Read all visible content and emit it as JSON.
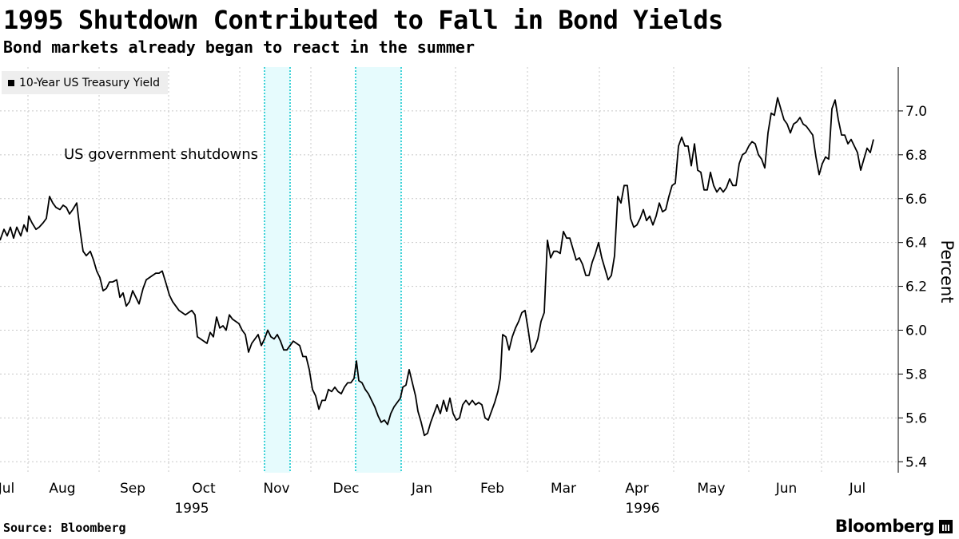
{
  "title": "1995 Shutdown Contributed to Fall in Bond Yields",
  "subtitle": "Bond markets already began to react in the summer",
  "legend": {
    "label": "10-Year US Treasury Yield"
  },
  "annotation": "US government shutdowns",
  "source": "Source: Bloomberg",
  "brand": "Bloomberg",
  "colors": {
    "line": "#000000",
    "shade": "#e6fbfd",
    "shade_edge": "#3fd3d8",
    "annotation": "#3fd3d8",
    "grid": "#c8c8c8"
  },
  "chart_data": {
    "type": "line",
    "title": "1995 Shutdown Contributed to Fall in Bond Yields",
    "subtitle": "Bond markets already began to react in the summer",
    "ylabel": "Percent",
    "ylim": [
      5.35,
      7.2
    ],
    "yticks": [
      "5.4",
      "5.6",
      "5.8",
      "6.0",
      "6.2",
      "6.4",
      "6.6",
      "6.8",
      "7.0"
    ],
    "xlim": [
      0,
      1098
    ],
    "months": [
      {
        "label": "Jul",
        "pos": -10
      },
      {
        "label": "Aug",
        "pos": 78
      },
      {
        "label": "Sep",
        "pos": 166
      },
      {
        "label": "Oct",
        "pos": 255
      },
      {
        "label": "Nov",
        "pos": 346
      },
      {
        "label": "Dec",
        "pos": 433
      },
      {
        "label": "Jan",
        "pos": 528
      },
      {
        "label": "Feb",
        "pos": 616
      },
      {
        "label": "Mar",
        "pos": 705
      },
      {
        "label": "Apr",
        "pos": 797
      },
      {
        "label": "May",
        "pos": 890
      },
      {
        "label": "Jun",
        "pos": 984
      },
      {
        "label": "Jul",
        "pos": 1073
      }
    ],
    "year_labels": [
      {
        "label": "1995",
        "pos": 240
      },
      {
        "label": "1996",
        "pos": 804
      }
    ],
    "gridlines_x": [
      35,
      124,
      211,
      300,
      389,
      478,
      570,
      660,
      750,
      843,
      937,
      1028
    ],
    "shutdowns": [
      [
        331,
        363
      ],
      [
        445,
        502
      ]
    ],
    "series": [
      {
        "name": "10-Year US Treasury Yield",
        "points": [
          [
            0,
            6.41
          ],
          [
            5,
            6.46
          ],
          [
            9,
            6.43
          ],
          [
            13,
            6.47
          ],
          [
            17,
            6.42
          ],
          [
            21,
            6.47
          ],
          [
            26,
            6.43
          ],
          [
            30,
            6.48
          ],
          [
            34,
            6.45
          ],
          [
            36,
            6.52
          ],
          [
            40,
            6.49
          ],
          [
            45,
            6.46
          ],
          [
            49,
            6.47
          ],
          [
            54,
            6.49
          ],
          [
            58,
            6.51
          ],
          [
            62,
            6.61
          ],
          [
            66,
            6.58
          ],
          [
            70,
            6.56
          ],
          [
            75,
            6.55
          ],
          [
            79,
            6.57
          ],
          [
            83,
            6.56
          ],
          [
            87,
            6.53
          ],
          [
            91,
            6.55
          ],
          [
            96,
            6.58
          ],
          [
            100,
            6.46
          ],
          [
            104,
            6.36
          ],
          [
            108,
            6.34
          ],
          [
            113,
            6.36
          ],
          [
            117,
            6.32
          ],
          [
            121,
            6.27
          ],
          [
            125,
            6.24
          ],
          [
            129,
            6.18
          ],
          [
            133,
            6.19
          ],
          [
            137,
            6.22
          ],
          [
            141,
            6.22
          ],
          [
            146,
            6.23
          ],
          [
            150,
            6.15
          ],
          [
            154,
            6.17
          ],
          [
            158,
            6.11
          ],
          [
            162,
            6.13
          ],
          [
            166,
            6.18
          ],
          [
            170,
            6.15
          ],
          [
            174,
            6.12
          ],
          [
            179,
            6.19
          ],
          [
            183,
            6.23
          ],
          [
            187,
            6.24
          ],
          [
            191,
            6.25
          ],
          [
            195,
            6.26
          ],
          [
            199,
            6.26
          ],
          [
            203,
            6.27
          ],
          [
            208,
            6.21
          ],
          [
            212,
            6.16
          ],
          [
            216,
            6.13
          ],
          [
            220,
            6.11
          ],
          [
            224,
            6.09
          ],
          [
            228,
            6.08
          ],
          [
            232,
            6.07
          ],
          [
            236,
            6.08
          ],
          [
            240,
            6.09
          ],
          [
            244,
            6.07
          ],
          [
            247,
            5.97
          ],
          [
            251,
            5.96
          ],
          [
            255,
            5.95
          ],
          [
            259,
            5.94
          ],
          [
            263,
            5.99
          ],
          [
            267,
            5.97
          ],
          [
            271,
            6.06
          ],
          [
            275,
            6.01
          ],
          [
            279,
            6.02
          ],
          [
            283,
            6.0
          ],
          [
            287,
            6.07
          ],
          [
            291,
            6.05
          ],
          [
            295,
            6.04
          ],
          [
            299,
            6.03
          ],
          [
            303,
            6.0
          ],
          [
            307,
            5.98
          ],
          [
            311,
            5.9
          ],
          [
            315,
            5.94
          ],
          [
            319,
            5.96
          ],
          [
            323,
            5.98
          ],
          [
            327,
            5.93
          ],
          [
            331,
            5.96
          ],
          [
            335,
            6.0
          ],
          [
            339,
            5.97
          ],
          [
            343,
            5.96
          ],
          [
            347,
            5.98
          ],
          [
            351,
            5.95
          ],
          [
            355,
            5.91
          ],
          [
            359,
            5.91
          ],
          [
            363,
            5.93
          ],
          [
            367,
            5.95
          ],
          [
            371,
            5.94
          ],
          [
            375,
            5.93
          ],
          [
            379,
            5.88
          ],
          [
            383,
            5.88
          ],
          [
            387,
            5.82
          ],
          [
            391,
            5.73
          ],
          [
            395,
            5.7
          ],
          [
            399,
            5.64
          ],
          [
            403,
            5.68
          ],
          [
            407,
            5.68
          ],
          [
            411,
            5.73
          ],
          [
            415,
            5.72
          ],
          [
            419,
            5.74
          ],
          [
            423,
            5.72
          ],
          [
            427,
            5.71
          ],
          [
            431,
            5.74
          ],
          [
            435,
            5.76
          ],
          [
            439,
            5.76
          ],
          [
            443,
            5.78
          ],
          [
            446,
            5.86
          ],
          [
            449,
            5.77
          ],
          [
            453,
            5.76
          ],
          [
            457,
            5.73
          ],
          [
            461,
            5.71
          ],
          [
            465,
            5.68
          ],
          [
            469,
            5.65
          ],
          [
            473,
            5.61
          ],
          [
            477,
            5.58
          ],
          [
            481,
            5.59
          ],
          [
            485,
            5.57
          ],
          [
            489,
            5.62
          ],
          [
            493,
            5.65
          ],
          [
            497,
            5.67
          ],
          [
            501,
            5.69
          ],
          [
            504,
            5.74
          ],
          [
            508,
            5.75
          ],
          [
            512,
            5.82
          ],
          [
            516,
            5.76
          ],
          [
            520,
            5.7
          ],
          [
            523,
            5.63
          ],
          [
            527,
            5.58
          ],
          [
            531,
            5.52
          ],
          [
            535,
            5.53
          ],
          [
            539,
            5.58
          ],
          [
            543,
            5.62
          ],
          [
            547,
            5.66
          ],
          [
            551,
            5.62
          ],
          [
            555,
            5.68
          ],
          [
            559,
            5.63
          ],
          [
            563,
            5.69
          ],
          [
            567,
            5.62
          ],
          [
            571,
            5.59
          ],
          [
            575,
            5.6
          ],
          [
            579,
            5.66
          ],
          [
            583,
            5.68
          ],
          [
            587,
            5.66
          ],
          [
            591,
            5.68
          ],
          [
            595,
            5.66
          ],
          [
            599,
            5.67
          ],
          [
            603,
            5.66
          ],
          [
            607,
            5.6
          ],
          [
            611,
            5.59
          ],
          [
            615,
            5.63
          ],
          [
            619,
            5.67
          ],
          [
            623,
            5.72
          ],
          [
            626,
            5.78
          ],
          [
            629,
            5.98
          ],
          [
            633,
            5.97
          ],
          [
            637,
            5.91
          ],
          [
            641,
            5.97
          ],
          [
            645,
            6.01
          ],
          [
            649,
            6.04
          ],
          [
            653,
            6.08
          ],
          [
            657,
            6.09
          ],
          [
            661,
            6.0
          ],
          [
            665,
            5.9
          ],
          [
            669,
            5.92
          ],
          [
            673,
            5.96
          ],
          [
            677,
            6.04
          ],
          [
            681,
            6.08
          ],
          [
            685,
            6.41
          ],
          [
            689,
            6.33
          ],
          [
            693,
            6.36
          ],
          [
            697,
            6.36
          ],
          [
            701,
            6.35
          ],
          [
            705,
            6.45
          ],
          [
            709,
            6.42
          ],
          [
            713,
            6.42
          ],
          [
            717,
            6.37
          ],
          [
            721,
            6.32
          ],
          [
            725,
            6.33
          ],
          [
            729,
            6.3
          ],
          [
            733,
            6.25
          ],
          [
            737,
            6.25
          ],
          [
            741,
            6.31
          ],
          [
            745,
            6.35
          ],
          [
            749,
            6.4
          ],
          [
            753,
            6.33
          ],
          [
            757,
            6.28
          ],
          [
            761,
            6.23
          ],
          [
            765,
            6.25
          ],
          [
            769,
            6.34
          ],
          [
            773,
            6.61
          ],
          [
            777,
            6.58
          ],
          [
            781,
            6.66
          ],
          [
            785,
            6.66
          ],
          [
            789,
            6.51
          ],
          [
            793,
            6.47
          ],
          [
            797,
            6.48
          ],
          [
            801,
            6.51
          ],
          [
            805,
            6.55
          ],
          [
            809,
            6.5
          ],
          [
            813,
            6.52
          ],
          [
            817,
            6.48
          ],
          [
            821,
            6.52
          ],
          [
            825,
            6.58
          ],
          [
            829,
            6.54
          ],
          [
            833,
            6.55
          ],
          [
            837,
            6.61
          ],
          [
            841,
            6.66
          ],
          [
            845,
            6.67
          ],
          [
            849,
            6.84
          ],
          [
            853,
            6.88
          ],
          [
            857,
            6.84
          ],
          [
            861,
            6.84
          ],
          [
            865,
            6.75
          ],
          [
            869,
            6.85
          ],
          [
            873,
            6.73
          ],
          [
            877,
            6.72
          ],
          [
            881,
            6.64
          ],
          [
            885,
            6.64
          ],
          [
            889,
            6.72
          ],
          [
            893,
            6.66
          ],
          [
            897,
            6.63
          ],
          [
            901,
            6.65
          ],
          [
            905,
            6.63
          ],
          [
            909,
            6.65
          ],
          [
            913,
            6.69
          ],
          [
            917,
            6.66
          ],
          [
            921,
            6.66
          ],
          [
            925,
            6.76
          ],
          [
            929,
            6.8
          ],
          [
            933,
            6.81
          ],
          [
            937,
            6.84
          ],
          [
            941,
            6.86
          ],
          [
            945,
            6.85
          ],
          [
            949,
            6.8
          ],
          [
            953,
            6.78
          ],
          [
            957,
            6.74
          ],
          [
            961,
            6.9
          ],
          [
            965,
            6.99
          ],
          [
            969,
            6.98
          ],
          [
            973,
            7.06
          ],
          [
            977,
            7.01
          ],
          [
            981,
            6.96
          ],
          [
            985,
            6.94
          ],
          [
            989,
            6.9
          ],
          [
            993,
            6.94
          ],
          [
            997,
            6.95
          ],
          [
            1001,
            6.97
          ],
          [
            1005,
            6.94
          ],
          [
            1009,
            6.93
          ],
          [
            1013,
            6.91
          ],
          [
            1017,
            6.89
          ],
          [
            1021,
            6.79
          ],
          [
            1025,
            6.71
          ],
          [
            1029,
            6.76
          ],
          [
            1033,
            6.79
          ],
          [
            1037,
            6.78
          ],
          [
            1041,
            7.01
          ],
          [
            1045,
            7.05
          ],
          [
            1049,
            6.96
          ],
          [
            1053,
            6.89
          ],
          [
            1057,
            6.89
          ],
          [
            1061,
            6.85
          ],
          [
            1065,
            6.87
          ],
          [
            1069,
            6.84
          ],
          [
            1073,
            6.81
          ],
          [
            1077,
            6.73
          ],
          [
            1081,
            6.78
          ],
          [
            1085,
            6.83
          ],
          [
            1089,
            6.81
          ],
          [
            1093,
            6.87
          ]
        ]
      }
    ]
  }
}
